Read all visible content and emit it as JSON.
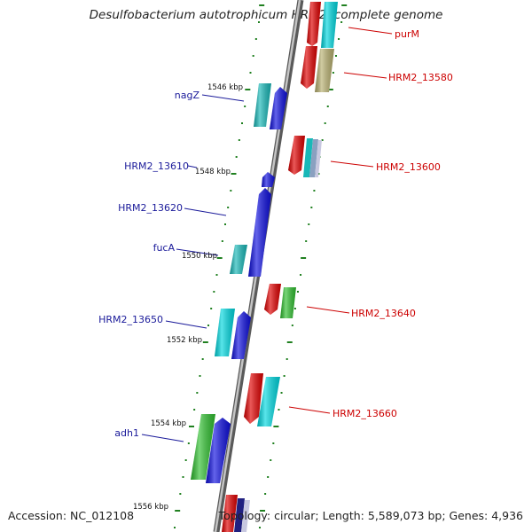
{
  "title": "Desulfobacterium autotrophicum HRM2, complete genome",
  "footer": {
    "accession": "Accession: NC_012108",
    "summary": "Topology: circular; Length: 5,589,073 bp; Genes: 4,936"
  },
  "scale_ticks": [
    "1546 kbp",
    "1548 kbp",
    "1550 kbp",
    "1552 kbp",
    "1554 kbp",
    "1556 kbp"
  ],
  "colors": {
    "red": "#e00000",
    "blue": "#1010e0",
    "cyan": "#00d8e0",
    "teal": "#18b8b8",
    "green": "#30c030",
    "olive": "#b8b070",
    "dark_blue": "#202080",
    "grid_green": "#208020",
    "axis_gray": "#8a8a8a",
    "label_red": "#cc0000",
    "label_blue": "#1a1a9a"
  },
  "genes_right": [
    "purM",
    "HRM2_13580",
    "HRM2_13600",
    "HRM2_13640",
    "HRM2_13660"
  ],
  "genes_left": [
    "nagZ",
    "HRM2_13610",
    "HRM2_13620",
    "fucA",
    "HRM2_13650",
    "adh1"
  ]
}
